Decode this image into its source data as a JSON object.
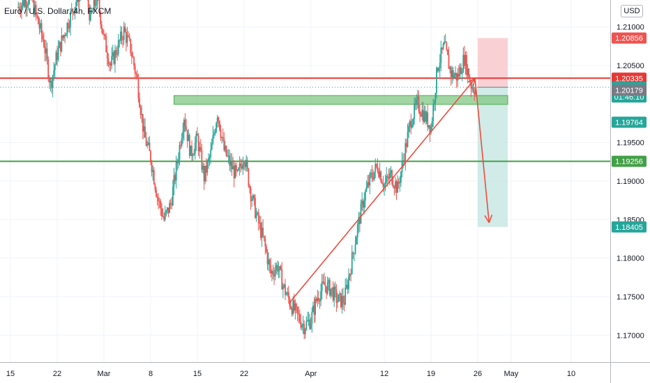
{
  "header": {
    "title": "Euro / U.S. Dollar, 4h, FXCM",
    "currency_button": "USD"
  },
  "colors": {
    "up": "#26a69a",
    "down": "#ef5350",
    "resistance_line": "#e53935",
    "support_line": "#43a047",
    "zone_fill": "#81c784",
    "stop_zone": "#f8c9cc",
    "target_zone": "#c8e8e4",
    "trend_arrow": "#ef4b3c",
    "gray_tag": "#787b86"
  },
  "chart_data": {
    "type": "candlestick",
    "title": "Euro / U.S. Dollar, 4h, FXCM",
    "ylim": [
      1.1665,
      1.2135
    ],
    "y_tick_labels": [
      "1.21000",
      "1.20500",
      "1.19500",
      "1.19000",
      "1.18500",
      "1.18000",
      "1.17500",
      "1.17000"
    ],
    "y_tick_values": [
      1.21,
      1.205,
      1.195,
      1.19,
      1.185,
      1.18,
      1.175,
      1.17
    ],
    "x_tick_labels": [
      "15",
      "22",
      "Mar",
      "8",
      "15",
      "22",
      "Apr",
      "12",
      "19",
      "26",
      "May",
      "10"
    ],
    "x_tick_days": [
      -1,
      6,
      13,
      20,
      27,
      34,
      44,
      55,
      62,
      69,
      74,
      83
    ],
    "price_tags": [
      {
        "label": "1.20856",
        "value": 1.20856,
        "color": "#ef5350"
      },
      {
        "label": "1.20335",
        "value": 1.20335,
        "color": "#e53935"
      },
      {
        "label": "1.20218",
        "value": 1.20218,
        "color": "#26a69a",
        "sub": "01:46:10"
      },
      {
        "label": "1.20179",
        "value": 1.20179,
        "color": "#787b86"
      },
      {
        "label": "1.19764",
        "value": 1.19764,
        "color": "#26a69a"
      },
      {
        "label": "1.19256",
        "value": 1.19256,
        "color": "#43a047"
      },
      {
        "label": "1.18405",
        "value": 1.18405,
        "color": "#26a69a"
      }
    ],
    "horizontal_lines": [
      {
        "name": "resistance",
        "value": 1.20335
      },
      {
        "name": "support",
        "value": 1.19256
      }
    ],
    "zone": {
      "top": 1.2011,
      "bottom": 1.19995,
      "start_day": 23.5,
      "end_day": 73.5
    },
    "position": {
      "start_day": 69,
      "end_day": 73.5,
      "stop": 1.20856,
      "entry": 1.20218,
      "target": 1.18405
    },
    "trend_arrows": [
      {
        "from": [
          40.7,
          1.1741
        ],
        "to": [
          68.6,
          1.2033
        ]
      },
      {
        "from": [
          68.6,
          1.2033
        ],
        "to": [
          70.7,
          1.1846
        ]
      }
    ],
    "close_path": [
      [
        0,
        1.2125
      ],
      [
        2,
        1.214
      ],
      [
        4,
        1.208
      ],
      [
        5,
        1.2025
      ],
      [
        6,
        1.2065
      ],
      [
        8,
        1.2115
      ],
      [
        10,
        1.216
      ],
      [
        11,
        1.211
      ],
      [
        12,
        1.214
      ],
      [
        13,
        1.2085
      ],
      [
        14,
        1.205
      ],
      [
        16,
        1.2095
      ],
      [
        17,
        1.2072
      ],
      [
        18,
        1.203
      ],
      [
        19,
        1.196
      ],
      [
        20,
        1.193
      ],
      [
        21,
        1.188
      ],
      [
        22,
        1.185
      ],
      [
        23,
        1.187
      ],
      [
        24,
        1.1925
      ],
      [
        25,
        1.1985
      ],
      [
        26,
        1.1935
      ],
      [
        27,
        1.1955
      ],
      [
        28,
        1.1905
      ],
      [
        29,
        1.1935
      ],
      [
        30,
        1.199
      ],
      [
        31,
        1.194
      ],
      [
        32,
        1.192
      ],
      [
        33,
        1.1905
      ],
      [
        34,
        1.1935
      ],
      [
        35,
        1.1885
      ],
      [
        36,
        1.185
      ],
      [
        37,
        1.182
      ],
      [
        38,
        1.178
      ],
      [
        39,
        1.179
      ],
      [
        40,
        1.176
      ],
      [
        41,
        1.174
      ],
      [
        42,
        1.1725
      ],
      [
        43,
        1.1712
      ],
      [
        44,
        1.172
      ],
      [
        45,
        1.175
      ],
      [
        46,
        1.1765
      ],
      [
        47,
        1.176
      ],
      [
        48,
        1.1745
      ],
      [
        49,
        1.1745
      ],
      [
        50,
        1.179
      ],
      [
        51,
        1.184
      ],
      [
        52,
        1.188
      ],
      [
        53,
        1.1905
      ],
      [
        54,
        1.192
      ],
      [
        55,
        1.1895
      ],
      [
        56,
        1.1908
      ],
      [
        57,
        1.189
      ],
      [
        58,
        1.1935
      ],
      [
        59,
        1.198
      ],
      [
        60,
        1.2
      ],
      [
        61,
        1.1985
      ],
      [
        62,
        1.197
      ],
      [
        63,
        1.205
      ],
      [
        64,
        1.2075
      ],
      [
        65,
        1.204
      ],
      [
        66,
        1.2035
      ],
      [
        67,
        1.206
      ],
      [
        68,
        1.2025
      ],
      [
        68.8,
        1.2018
      ]
    ]
  }
}
